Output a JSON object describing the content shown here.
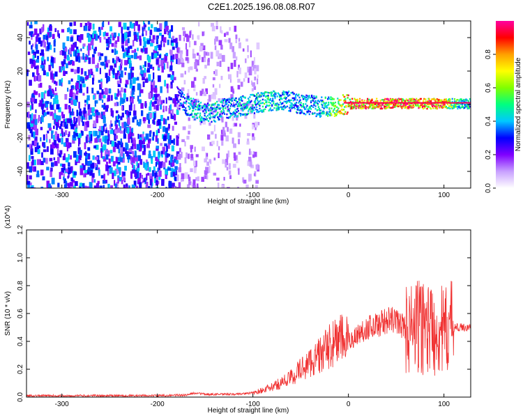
{
  "title": "C2E1.2025.196.08.08.R07",
  "chart_data": [
    {
      "type": "heatmap",
      "title": "C2E1.2025.196.08.08.R07",
      "xlabel": "Height of straight line (km)",
      "ylabel": "Frequency (Hz)",
      "xlim": [
        -337,
        128
      ],
      "ylim": [
        -50,
        50
      ],
      "xticks": [
        "-300",
        "-200",
        "-100",
        "0",
        "100"
      ],
      "xtick_values": [
        -300,
        -200,
        -100,
        0,
        100
      ],
      "yticks": [
        "-40",
        "-20",
        "0",
        "20",
        "40"
      ],
      "ytick_values": [
        -40,
        -20,
        0,
        20,
        40
      ],
      "colorbar": {
        "label": "Normalized spectral amplitude",
        "range": [
          0,
          1
        ],
        "ticks": [
          "0.0",
          "0.2",
          "0.4",
          "0.6",
          "0.8"
        ],
        "tick_values": [
          0.0,
          0.2,
          0.4,
          0.6,
          0.8
        ],
        "colormap": [
          "#ffffff",
          "#c8a0ff",
          "#8000ff",
          "#0000ff",
          "#00c8ff",
          "#00ff80",
          "#80ff00",
          "#ffff00",
          "#ffa000",
          "#ff0000",
          "#ff00a0"
        ]
      },
      "regions": [
        {
          "x_from": -337,
          "x_to": -180,
          "description_level": 0.25
        },
        {
          "x_from": -180,
          "x_to": -95,
          "description_level": 0.1
        }
      ],
      "ridge": {
        "x": [
          -180,
          -170,
          -160,
          -150,
          -140,
          -130,
          -120,
          -110,
          -100,
          -90,
          -80,
          -70,
          -60,
          -50,
          -40,
          -30,
          -20,
          -10,
          0,
          20,
          40,
          60,
          80,
          100,
          110,
          128
        ],
        "y": [
          5,
          0,
          -3,
          -5,
          -4,
          -2,
          -1,
          0,
          1,
          2,
          3,
          3,
          2,
          1,
          0,
          -1,
          -1,
          0,
          1,
          1,
          1,
          1,
          1,
          1,
          1,
          1
        ],
        "amplitude": [
          0.3,
          0.45,
          0.5,
          0.45,
          0.5,
          0.45,
          0.45,
          0.5,
          0.5,
          0.55,
          0.5,
          0.5,
          0.45,
          0.45,
          0.45,
          0.5,
          0.6,
          0.8,
          0.9,
          0.95,
          0.95,
          0.95,
          0.95,
          0.9,
          0.6,
          0.5
        ]
      }
    },
    {
      "type": "line",
      "xlabel": "Height of straight line (km)",
      "ylabel": "SNR (10 * v/v)",
      "y_multiplier": "(x10^4)",
      "xlim": [
        -337,
        128
      ],
      "ylim": [
        0,
        1.2
      ],
      "xticks": [
        "-300",
        "-200",
        "-100",
        "0",
        "100"
      ],
      "xtick_values": [
        -300,
        -200,
        -100,
        0,
        100
      ],
      "yticks": [
        "0.0",
        "0.2",
        "0.4",
        "0.6",
        "0.8",
        "1.0",
        "1.2"
      ],
      "ytick_values": [
        0.0,
        0.2,
        0.4,
        0.6,
        0.8,
        1.0,
        1.2
      ],
      "color": "#f03030",
      "series": [
        {
          "x": [
            -337,
            -300,
            -250,
            -200,
            -170,
            -160,
            -150,
            -120,
            -100,
            -80,
            -60,
            -50,
            -40,
            -30,
            -20,
            -10,
            0,
            10,
            20,
            30,
            40,
            50,
            55,
            60,
            65,
            70,
            75,
            80,
            85,
            90,
            95,
            100,
            105,
            110,
            128
          ],
          "y": [
            0.01,
            0.01,
            0.01,
            0.01,
            0.015,
            0.03,
            0.02,
            0.02,
            0.03,
            0.07,
            0.14,
            0.2,
            0.25,
            0.3,
            0.36,
            0.42,
            0.4,
            0.45,
            0.5,
            0.52,
            0.55,
            0.55,
            0.52,
            0.5,
            0.48,
            0.5,
            0.5,
            0.52,
            0.5,
            0.48,
            0.5,
            0.45,
            0.5,
            0.5,
            0.5
          ]
        }
      ]
    }
  ]
}
